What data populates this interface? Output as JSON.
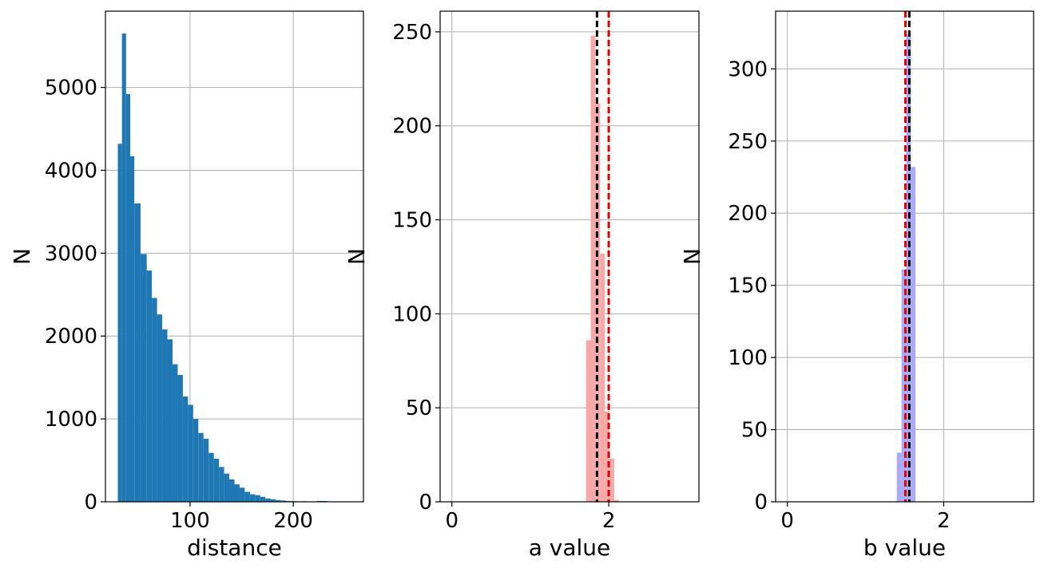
{
  "chart_data": [
    {
      "type": "bar",
      "xlabel": "distance",
      "ylabel": "N",
      "xlim": [
        18,
        268
      ],
      "ylim": [
        0,
        5920
      ],
      "xticks": [
        100,
        200
      ],
      "yticks": [
        0,
        1000,
        2000,
        3000,
        4000,
        5000
      ],
      "grid": true,
      "color": "#1f77b4",
      "bins": [
        {
          "x0": 30,
          "x1": 34,
          "count": 4320
        },
        {
          "x0": 34,
          "x1": 38,
          "count": 5650
        },
        {
          "x0": 38,
          "x1": 42,
          "count": 4920
        },
        {
          "x0": 42,
          "x1": 46,
          "count": 4170
        },
        {
          "x0": 46,
          "x1": 52,
          "count": 3600
        },
        {
          "x0": 52,
          "x1": 58,
          "count": 2990
        },
        {
          "x0": 58,
          "x1": 63,
          "count": 2790
        },
        {
          "x0": 63,
          "x1": 68,
          "count": 2460
        },
        {
          "x0": 68,
          "x1": 73,
          "count": 2260
        },
        {
          "x0": 73,
          "x1": 78,
          "count": 2080
        },
        {
          "x0": 78,
          "x1": 83,
          "count": 1960
        },
        {
          "x0": 83,
          "x1": 88,
          "count": 1660
        },
        {
          "x0": 88,
          "x1": 93,
          "count": 1530
        },
        {
          "x0": 93,
          "x1": 98,
          "count": 1270
        },
        {
          "x0": 98,
          "x1": 103,
          "count": 1170
        },
        {
          "x0": 103,
          "x1": 108,
          "count": 1000
        },
        {
          "x0": 108,
          "x1": 113,
          "count": 830
        },
        {
          "x0": 113,
          "x1": 118,
          "count": 760
        },
        {
          "x0": 118,
          "x1": 123,
          "count": 590
        },
        {
          "x0": 123,
          "x1": 128,
          "count": 520
        },
        {
          "x0": 128,
          "x1": 133,
          "count": 420
        },
        {
          "x0": 133,
          "x1": 138,
          "count": 340
        },
        {
          "x0": 138,
          "x1": 143,
          "count": 270
        },
        {
          "x0": 143,
          "x1": 148,
          "count": 210
        },
        {
          "x0": 148,
          "x1": 153,
          "count": 170
        },
        {
          "x0": 153,
          "x1": 158,
          "count": 120
        },
        {
          "x0": 158,
          "x1": 163,
          "count": 90
        },
        {
          "x0": 163,
          "x1": 168,
          "count": 80
        },
        {
          "x0": 168,
          "x1": 173,
          "count": 60
        },
        {
          "x0": 173,
          "x1": 178,
          "count": 40
        },
        {
          "x0": 178,
          "x1": 183,
          "count": 30
        },
        {
          "x0": 183,
          "x1": 188,
          "count": 20
        },
        {
          "x0": 188,
          "x1": 193,
          "count": 15
        },
        {
          "x0": 193,
          "x1": 198,
          "count": 10
        },
        {
          "x0": 198,
          "x1": 203,
          "count": 8
        },
        {
          "x0": 203,
          "x1": 213,
          "count": 6
        },
        {
          "x0": 213,
          "x1": 223,
          "count": 4
        },
        {
          "x0": 223,
          "x1": 233,
          "count": 10
        },
        {
          "x0": 233,
          "x1": 243,
          "count": 2
        },
        {
          "x0": 243,
          "x1": 258,
          "count": 2
        }
      ],
      "vlines": []
    },
    {
      "type": "bar",
      "xlabel": "a value",
      "ylabel": "N",
      "xlim": [
        -0.15,
        3.15
      ],
      "ylim": [
        0,
        261
      ],
      "xticks": [
        0,
        2
      ],
      "yticks": [
        0,
        50,
        100,
        150,
        200,
        250
      ],
      "grid": true,
      "color": "#f7a8a8",
      "bins": [
        {
          "x0": 1.71,
          "x1": 1.77,
          "count": 86
        },
        {
          "x0": 1.77,
          "x1": 1.83,
          "count": 248
        },
        {
          "x0": 1.83,
          "x1": 1.89,
          "count": 212
        },
        {
          "x0": 1.89,
          "x1": 1.95,
          "count": 132
        },
        {
          "x0": 1.95,
          "x1": 2.01,
          "count": 48
        },
        {
          "x0": 2.01,
          "x1": 2.07,
          "count": 23
        },
        {
          "x0": 2.07,
          "x1": 2.13,
          "count": 1
        }
      ],
      "vlines": [
        {
          "x": 1.85,
          "color": "#000000"
        },
        {
          "x": 2.0,
          "color": "#e00000"
        }
      ]
    },
    {
      "type": "bar",
      "xlabel": "b value",
      "ylabel": "N",
      "xlim": [
        -0.15,
        3.15
      ],
      "ylim": [
        0,
        340
      ],
      "xticks": [
        0,
        2
      ],
      "yticks": [
        0,
        50,
        100,
        150,
        200,
        250,
        300
      ],
      "grid": true,
      "color": "#aaaaff",
      "bins": [
        {
          "x0": 1.4,
          "x1": 1.46,
          "count": 34
        },
        {
          "x0": 1.46,
          "x1": 1.52,
          "count": 161
        },
        {
          "x0": 1.52,
          "x1": 1.58,
          "count": 324
        },
        {
          "x0": 1.58,
          "x1": 1.64,
          "count": 232
        }
      ],
      "vlines": [
        {
          "x": 1.51,
          "color": "#e00000"
        },
        {
          "x": 1.56,
          "color": "#000000"
        }
      ]
    }
  ]
}
